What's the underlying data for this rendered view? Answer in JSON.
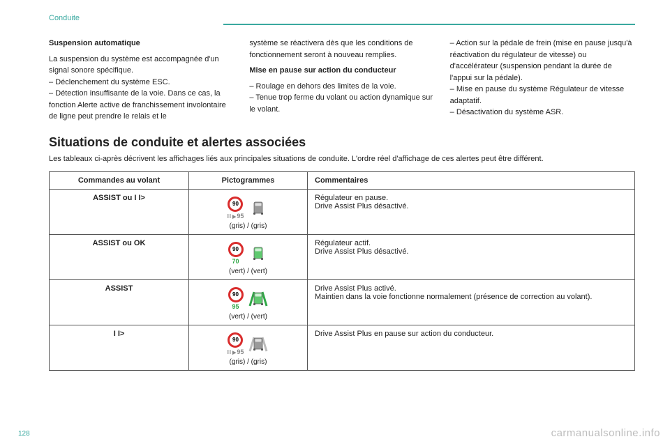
{
  "breadcrumb": "Conduite",
  "page_number": "128",
  "watermark": "carmanualsonline.info",
  "colors": {
    "accent": "#3aa9a0",
    "sign_ring": "#d92c2c",
    "green": "#2fa846",
    "grey": "#9a9a9a"
  },
  "col1": {
    "heading": "Suspension automatique",
    "p1": "La suspension du système est accompagnée d'un signal sonore spécifique.",
    "li1": "Déclenchement du système ESC.",
    "li2": "Détection insuffisante de la voie. Dans ce cas, la fonction Alerte active de franchissement involontaire de ligne peut prendre le relais et le"
  },
  "col2": {
    "p1": "système se réactivera dès que les conditions de fonctionnement seront à nouveau remplies.",
    "heading": "Mise en pause sur action du conducteur",
    "li1": "Roulage en dehors des limites de la voie.",
    "li2": "Tenue trop ferme du volant ou action dynamique sur le volant."
  },
  "col3": {
    "li1": "Action sur la pédale de frein (mise en pause jusqu'à réactivation du régulateur de vitesse) ou d'accélérateur (suspension pendant la durée de l'appui sur la pédale).",
    "li2": "Mise en pause du système Régulateur de vitesse adaptatif.",
    "li3": "Désactivation du système ASR."
  },
  "section": {
    "title": "Situations de conduite et alertes associées",
    "sub": "Les tableaux ci-après décrivent les affichages liés aux principales situations de conduite. L'ordre réel d'affichage de ces alertes peut être différent."
  },
  "table": {
    "headers": {
      "h1": "Commandes au volant",
      "h2": "Pictogrammes",
      "h3": "Commentaires"
    },
    "rows": [
      {
        "cmd": "ASSIST ou I I>",
        "sign_value": "90",
        "sub_value": "95",
        "sub_prefix": "pause",
        "sub_class": "gris",
        "car_body": "#9a9a9a",
        "lane": "none",
        "caption": "(gris) / (gris)",
        "comment_l1": "Régulateur en pause.",
        "comment_l2": "Drive Assist Plus désactivé."
      },
      {
        "cmd": "ASSIST ou OK",
        "sign_value": "90",
        "sub_value": "70",
        "sub_prefix": "",
        "sub_class": "vert",
        "car_body": "#5fc96f",
        "lane": "none",
        "caption": "(vert) / (vert)",
        "comment_l1": "Régulateur actif.",
        "comment_l2": "Drive Assist Plus désactivé."
      },
      {
        "cmd": "ASSIST",
        "sign_value": "90",
        "sub_value": "95",
        "sub_prefix": "",
        "sub_class": "vert",
        "car_body": "#5fc96f",
        "lane": "green",
        "caption": "(vert) / (vert)",
        "comment_l1": "Drive Assist Plus activé.",
        "comment_l2": "Maintien dans la voie fonctionne normalement (présence de correction au volant)."
      },
      {
        "cmd": "I I>",
        "sign_value": "90",
        "sub_value": "95",
        "sub_prefix": "pause",
        "sub_class": "gris",
        "car_body": "#9a9a9a",
        "lane": "grey",
        "caption": "(gris) / (gris)",
        "comment_l1": "Drive Assist Plus en pause sur action du conducteur.",
        "comment_l2": ""
      }
    ]
  }
}
